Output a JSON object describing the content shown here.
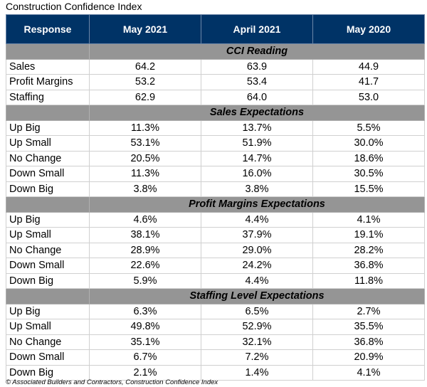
{
  "title": "Construction Confidence Index",
  "columns": [
    "Response",
    "May 2021",
    "April 2021",
    "May 2020"
  ],
  "sections": [
    {
      "name": "CCI Reading",
      "rows": [
        [
          "Sales",
          "64.2",
          "63.9",
          "44.9"
        ],
        [
          "Profit Margins",
          "53.2",
          "53.4",
          "41.7"
        ],
        [
          "Staffing",
          "62.9",
          "64.0",
          "53.0"
        ]
      ]
    },
    {
      "name": "Sales Expectations",
      "rows": [
        [
          "Up Big",
          "11.3%",
          "13.7%",
          "5.5%"
        ],
        [
          "Up Small",
          "53.1%",
          "51.9%",
          "30.0%"
        ],
        [
          "No Change",
          "20.5%",
          "14.7%",
          "18.6%"
        ],
        [
          "Down Small",
          "11.3%",
          "16.0%",
          "30.5%"
        ],
        [
          "Down Big",
          "3.8%",
          "3.8%",
          "15.5%"
        ]
      ]
    },
    {
      "name": "Profit Margins Expectations",
      "rows": [
        [
          "Up Big",
          "4.6%",
          "4.4%",
          "4.1%"
        ],
        [
          "Up Small",
          "38.1%",
          "37.9%",
          "19.1%"
        ],
        [
          "No Change",
          "28.9%",
          "29.0%",
          "28.2%"
        ],
        [
          "Down Small",
          "22.6%",
          "24.2%",
          "36.8%"
        ],
        [
          "Down Big",
          "5.9%",
          "4.4%",
          "11.8%"
        ]
      ]
    },
    {
      "name": "Staffing Level Expectations",
      "rows": [
        [
          "Up Big",
          "6.3%",
          "6.5%",
          "2.7%"
        ],
        [
          "Up Small",
          "49.8%",
          "52.9%",
          "35.5%"
        ],
        [
          "No Change",
          "35.1%",
          "32.1%",
          "36.8%"
        ],
        [
          "Down Small",
          "6.7%",
          "7.2%",
          "20.9%"
        ],
        [
          "Down Big",
          "2.1%",
          "1.4%",
          "4.1%"
        ]
      ]
    }
  ],
  "footer": "© Associated Builders and Contractors, Construction Confidence Index",
  "colors": {
    "header": "#003366",
    "section": "#959595"
  }
}
